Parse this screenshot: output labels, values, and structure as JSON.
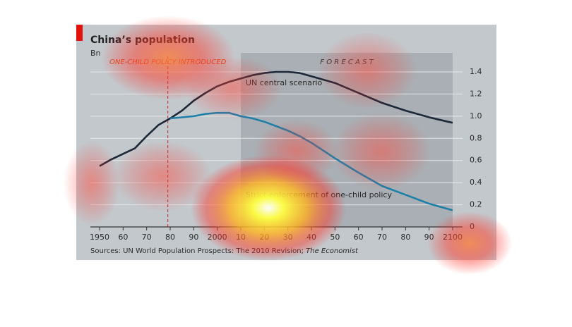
{
  "chart_data": {
    "type": "line",
    "title": "China’s population",
    "unit_label": "Bn",
    "source": "Sources: UN World Population Prospects: The 2010 Revision;",
    "source_italic": "The Economist",
    "annotations": [
      {
        "text": "ONE-CHILD POLICY INTRODUCED",
        "x": 1979
      },
      {
        "text": "F O R E C A S T",
        "x": 2010
      }
    ],
    "x": [
      1950,
      1955,
      1960,
      1965,
      1970,
      1975,
      1980,
      1985,
      1990,
      1995,
      2000,
      2005,
      2010,
      2015,
      2020,
      2025,
      2030,
      2035,
      2040,
      2050,
      2060,
      2070,
      2080,
      2090,
      2100
    ],
    "series": [
      {
        "name": "UN central scenario",
        "color": "#1c2838",
        "values": [
          0.55,
          0.61,
          0.66,
          0.71,
          0.82,
          0.92,
          0.98,
          1.05,
          1.14,
          1.21,
          1.27,
          1.31,
          1.34,
          1.37,
          1.39,
          1.4,
          1.4,
          1.39,
          1.36,
          1.3,
          1.21,
          1.12,
          1.05,
          0.99,
          0.94
        ]
      },
      {
        "name": "Strict enforcement of one-child policy",
        "color": "#1f7fa8",
        "values": [
          null,
          null,
          null,
          null,
          null,
          null,
          0.98,
          0.99,
          1.0,
          1.02,
          1.03,
          1.03,
          1.0,
          0.98,
          0.95,
          0.91,
          0.87,
          0.82,
          0.76,
          0.62,
          0.49,
          0.37,
          0.29,
          0.21,
          0.15
        ]
      }
    ],
    "xlim": [
      1950,
      2100
    ],
    "xticks": [
      {
        "value": 1950,
        "label": "1950"
      },
      {
        "value": 1960,
        "label": "60"
      },
      {
        "value": 1970,
        "label": "70"
      },
      {
        "value": 1980,
        "label": "80"
      },
      {
        "value": 1990,
        "label": "90"
      },
      {
        "value": 2000,
        "label": "2000"
      },
      {
        "value": 2010,
        "label": "10"
      },
      {
        "value": 2020,
        "label": "20"
      },
      {
        "value": 2030,
        "label": "30"
      },
      {
        "value": 2040,
        "label": "40"
      },
      {
        "value": 2050,
        "label": "50"
      },
      {
        "value": 2060,
        "label": "60"
      },
      {
        "value": 2070,
        "label": "70"
      },
      {
        "value": 2080,
        "label": "80"
      },
      {
        "value": 2090,
        "label": "90"
      },
      {
        "value": 2100,
        "label": "2100"
      }
    ],
    "ylim": [
      0,
      1.4
    ],
    "yticks": [
      0,
      0.2,
      0.4,
      0.6,
      0.8,
      {
        "value": 1,
        "label": "1.0"
      },
      1.2,
      1.4
    ],
    "grid": true
  }
}
